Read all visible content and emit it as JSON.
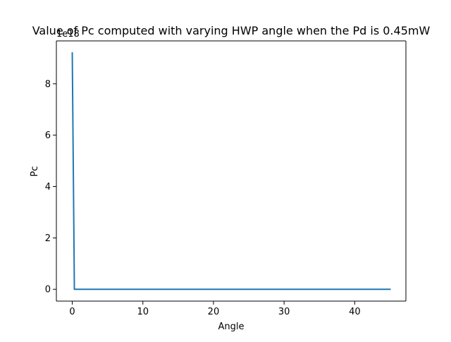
{
  "chart_data": {
    "type": "line",
    "title": "Value of Pc computed with varying HWP angle when the Pd is 0.45mW",
    "xlabel": "Angle",
    "ylabel": "Pc",
    "y_offset_text": "1e18",
    "xlim": [
      -2.25,
      47.25
    ],
    "ylim": [
      -0.46,
      9.67
    ],
    "y_scale_factor": 1e+18,
    "xticks": [
      0,
      10,
      20,
      30,
      40
    ],
    "xtick_labels": [
      "0",
      "10",
      "20",
      "30",
      "40"
    ],
    "yticks": [
      0,
      2,
      4,
      6,
      8
    ],
    "ytick_labels": [
      "0",
      "2",
      "4",
      "6",
      "8"
    ],
    "grid": false,
    "series": [
      {
        "color": "#1f77b4",
        "x": [
          0,
          0.3,
          45
        ],
        "y": [
          9.2,
          0.0,
          0.0
        ]
      }
    ]
  }
}
